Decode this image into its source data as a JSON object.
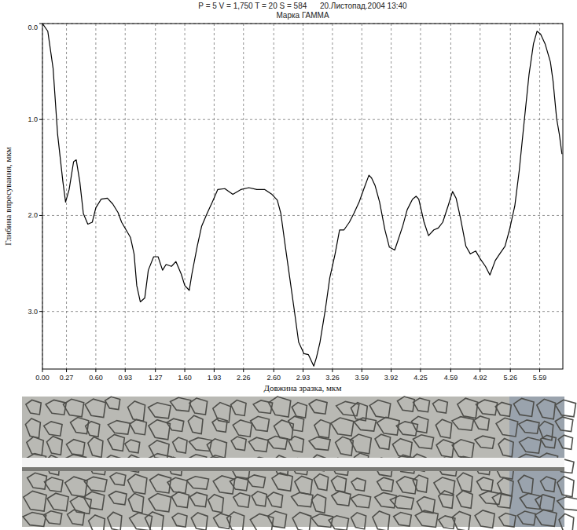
{
  "chart_data": {
    "type": "line",
    "title": "P = 5 V = 1,750 T = 20 S = 584      20.Листопад.2004 13:40",
    "subtitle": "Марка ГАММА",
    "x_label": "Довжина зразка, мкм",
    "y_label": "Глибина впресування, мкм",
    "color": "#000000",
    "grid": true,
    "xlim": [
      0,
      5.85
    ],
    "ylim": [
      3.6,
      0
    ],
    "xticks": [
      {
        "value": 0,
        "label": "0.00"
      },
      0.27,
      {
        "value": 0.6,
        "label": "0.60"
      },
      0.93,
      1.27,
      {
        "value": 1.6,
        "label": "1.60"
      },
      1.93,
      2.26,
      {
        "value": 2.6,
        "label": "2.60"
      },
      2.93,
      3.26,
      3.59,
      3.92,
      4.25,
      4.59,
      4.92,
      5.26,
      5.59
    ],
    "yticks": [
      {
        "value": 0,
        "label": "0.0"
      },
      {
        "value": 1,
        "label": "1.0"
      },
      {
        "value": 2,
        "label": "2.0"
      },
      {
        "value": 3,
        "label": "3.0"
      }
    ],
    "x": [
      0.0,
      0.06,
      0.12,
      0.17,
      0.23,
      0.26,
      0.3,
      0.35,
      0.38,
      0.42,
      0.46,
      0.51,
      0.56,
      0.6,
      0.66,
      0.73,
      0.79,
      0.85,
      0.89,
      0.94,
      0.99,
      1.03,
      1.06,
      1.1,
      1.15,
      1.19,
      1.25,
      1.3,
      1.35,
      1.39,
      1.45,
      1.5,
      1.56,
      1.6,
      1.65,
      1.68,
      1.74,
      1.79,
      1.85,
      1.91,
      1.97,
      2.05,
      2.14,
      2.23,
      2.32,
      2.41,
      2.5,
      2.58,
      2.64,
      2.68,
      2.73,
      2.78,
      2.83,
      2.88,
      2.94,
      2.99,
      3.05,
      3.08,
      3.12,
      3.18,
      3.23,
      3.29,
      3.34,
      3.39,
      3.45,
      3.5,
      3.56,
      3.61,
      3.67,
      3.7,
      3.74,
      3.79,
      3.85,
      3.9,
      3.96,
      4.0,
      4.05,
      4.1,
      4.16,
      4.2,
      4.23,
      4.29,
      4.34,
      4.4,
      4.45,
      4.5,
      4.56,
      4.61,
      4.65,
      4.7,
      4.76,
      4.81,
      4.87,
      4.92,
      4.98,
      5.03,
      5.09,
      5.14,
      5.2,
      5.25,
      5.31,
      5.36,
      5.41,
      5.47,
      5.52,
      5.56,
      5.6,
      5.65,
      5.71,
      5.74,
      5.78,
      5.81,
      5.84
    ],
    "values": [
      0.0,
      0.08,
      0.47,
      1.15,
      1.65,
      1.86,
      1.73,
      1.44,
      1.42,
      1.65,
      1.98,
      2.09,
      2.07,
      1.92,
      1.83,
      1.82,
      1.88,
      1.97,
      2.07,
      2.15,
      2.23,
      2.4,
      2.73,
      2.9,
      2.86,
      2.57,
      2.43,
      2.43,
      2.57,
      2.51,
      2.53,
      2.48,
      2.61,
      2.73,
      2.78,
      2.61,
      2.32,
      2.11,
      1.98,
      1.86,
      1.73,
      1.72,
      1.78,
      1.73,
      1.71,
      1.73,
      1.73,
      1.78,
      1.84,
      1.98,
      2.32,
      2.65,
      2.98,
      3.32,
      3.44,
      3.45,
      3.57,
      3.48,
      3.32,
      2.98,
      2.65,
      2.4,
      2.15,
      2.15,
      2.07,
      1.98,
      1.86,
      1.73,
      1.58,
      1.61,
      1.69,
      1.86,
      2.15,
      2.33,
      2.36,
      2.25,
      2.11,
      1.94,
      1.83,
      1.8,
      1.83,
      2.07,
      2.21,
      2.15,
      2.13,
      2.07,
      1.9,
      1.75,
      1.82,
      2.03,
      2.32,
      2.4,
      2.37,
      2.45,
      2.53,
      2.62,
      2.47,
      2.4,
      2.32,
      2.15,
      1.9,
      1.53,
      1.07,
      0.53,
      0.21,
      0.08,
      0.11,
      0.21,
      0.4,
      0.6,
      0.99,
      1.15,
      1.36
    ]
  }
}
